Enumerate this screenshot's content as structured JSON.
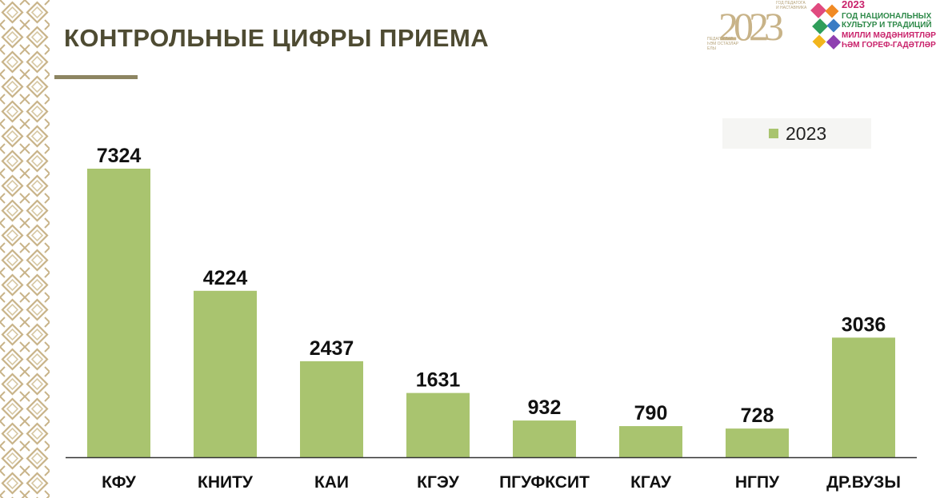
{
  "title": "КОНТРОЛЬНЫЕ ЦИФРЫ ПРИЕМА",
  "logos": {
    "teacher_year": {
      "year": "2023",
      "caption_top": "год педагога и наставника",
      "caption_bottom": "Педагоглар һәм остазлар елы"
    },
    "culture_year": {
      "year": "2023",
      "line1": "ГОД НАЦИОНАЛЬНЫХ",
      "line2": "КУЛЬТУР И ТРАДИЦИЙ",
      "line3": "МИЛЛИ МӘДӘНИЯТЛӘР",
      "line4": "ҺӘМ ГОРЕФ-ГАДӘТЛӘР ЕЛЫ"
    }
  },
  "colors": {
    "bar": "#a9c46f",
    "title": "#4e4b32",
    "ornament": "#c8b388"
  },
  "chart_data": {
    "type": "bar",
    "categories": [
      "КФУ",
      "КНИТУ",
      "КАИ",
      "КГЭУ",
      "ПГУФКСИТ",
      "КГАУ",
      "НГПУ",
      "ДР.ВУЗЫ"
    ],
    "series": [
      {
        "name": "2023",
        "values": [
          7324,
          4224,
          2437,
          1631,
          932,
          790,
          728,
          3036
        ]
      }
    ],
    "data_labels": [
      "7324",
      "4224",
      "2437",
      "1631",
      "932",
      "790",
      "728",
      "3036"
    ],
    "ylim": [
      0,
      7324
    ],
    "legend": "top-right",
    "grid": false
  }
}
